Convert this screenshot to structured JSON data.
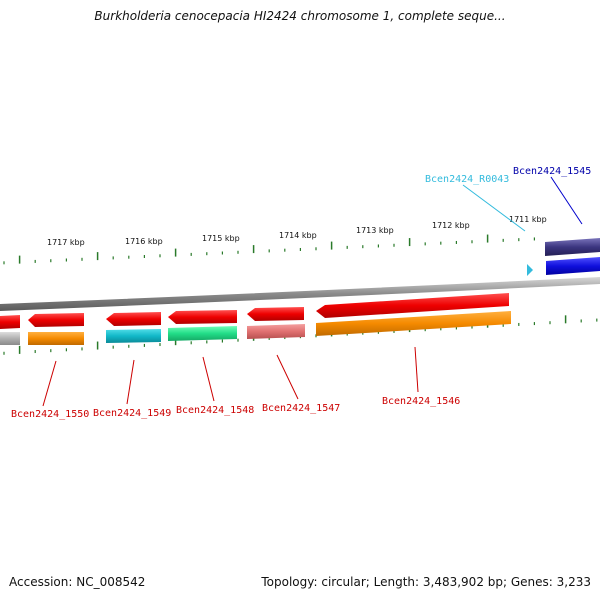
{
  "title": "Burkholderia cenocepacia HI2424 chromosome 1, complete seque...",
  "footer": {
    "accession": "Accession: NC_008542",
    "summary": "Topology: circular; Length: 3,483,902 bp; Genes: 3,233"
  },
  "scale_labels": [
    "1717 kbp",
    "1716 kbp",
    "1715 kbp",
    "1714 kbp",
    "1713 kbp",
    "1712 kbp",
    "1711 kbp"
  ],
  "genes": [
    {
      "label": "Bcen2424_1550",
      "color": "#cc0000"
    },
    {
      "label": "Bcen2424_1549",
      "color": "#cc0000"
    },
    {
      "label": "Bcen2424_1548",
      "color": "#cc0000"
    },
    {
      "label": "Bcen2424_1547",
      "color": "#cc0000"
    },
    {
      "label": "Bcen2424_1546",
      "color": "#cc0000"
    },
    {
      "label": "Bcen2424_R0043",
      "color": "#33bbdd"
    },
    {
      "label": "Bcen2424_1545",
      "color": "#0000aa"
    }
  ],
  "colors": {
    "gene_red": "#e01010",
    "cds_orange": "#f58a00",
    "cds_cyan": "#12b8c8",
    "cds_green": "#22dd88",
    "cds_pink": "#e07070",
    "cds_gray": "#b0b0b0",
    "cds_purple": "#3b3580",
    "cds_blue": "#1010dd",
    "trna_cyan": "#33bbdd",
    "tick_green": "#2a7a2a",
    "backbone_gray": "#888888"
  }
}
